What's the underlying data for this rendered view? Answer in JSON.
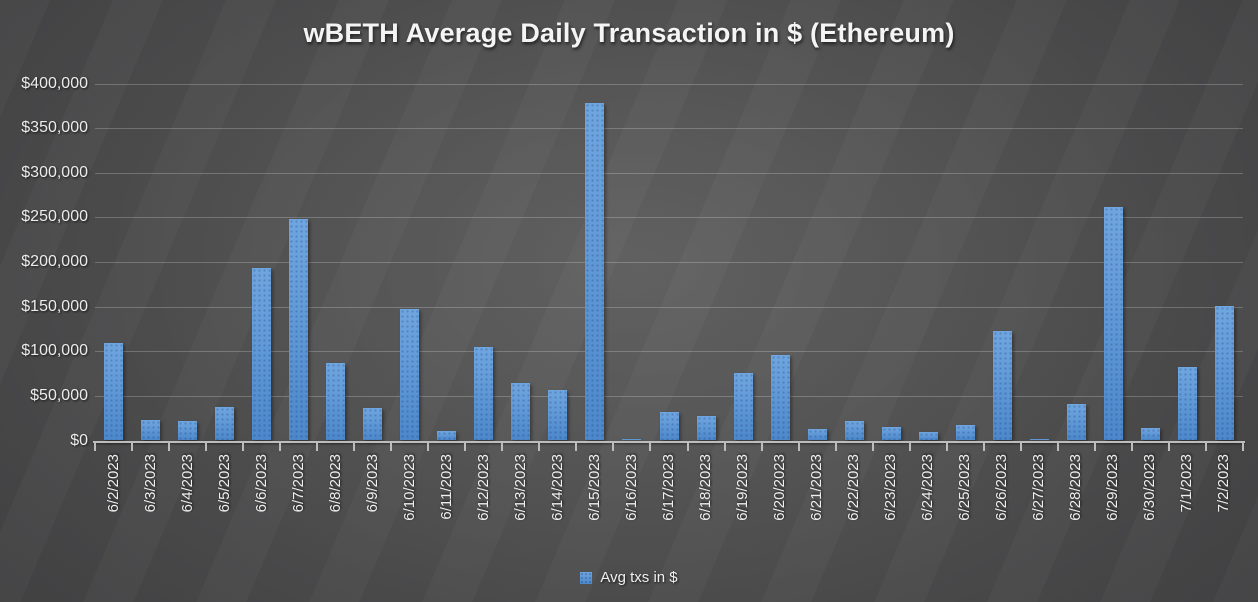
{
  "title": "wBETH Average Daily Transaction in $ (Ethereum)",
  "legend": {
    "label": "Avg txs in $"
  },
  "colors": {
    "bar_top": "#6FA6E0",
    "bar_bottom": "#4C88CB",
    "background_center": "#585858",
    "background_edge": "#2a2a2c",
    "gridline": "rgba(255,255,255,0.22)",
    "axis": "#bdbdbd",
    "text": "#efefef"
  },
  "chart_data": {
    "type": "bar",
    "title": "wBETH Average Daily Transaction in $ (Ethereum)",
    "xlabel": "",
    "ylabel": "",
    "ylim": [
      0,
      400000
    ],
    "y_tick_interval": 50000,
    "y_ticks": [
      {
        "value": 0,
        "label": "$0"
      },
      {
        "value": 50000,
        "label": "$50,000"
      },
      {
        "value": 100000,
        "label": "$100,000"
      },
      {
        "value": 150000,
        "label": "$150,000"
      },
      {
        "value": 200000,
        "label": "$200,000"
      },
      {
        "value": 250000,
        "label": "$250,000"
      },
      {
        "value": 300000,
        "label": "$300,000"
      },
      {
        "value": 350000,
        "label": "$350,000"
      },
      {
        "value": 400000,
        "label": "$400,000"
      }
    ],
    "grid": true,
    "legend_position": "bottom",
    "categories": [
      "6/2/2023",
      "6/3/2023",
      "6/4/2023",
      "6/5/2023",
      "6/6/2023",
      "6/7/2023",
      "6/8/2023",
      "6/9/2023",
      "6/10/2023",
      "6/11/2023",
      "6/12/2023",
      "6/13/2023",
      "6/14/2023",
      "6/15/2023",
      "6/16/2023",
      "6/17/2023",
      "6/18/2023",
      "6/19/2023",
      "6/20/2023",
      "6/21/2023",
      "6/22/2023",
      "6/23/2023",
      "6/24/2023",
      "6/25/2023",
      "6/26/2023",
      "6/27/2023",
      "6/28/2023",
      "6/29/2023",
      "6/30/2023",
      "7/1/2023",
      "7/2/2023"
    ],
    "series": [
      {
        "name": "Avg txs in $",
        "values": [
          109000,
          23000,
          22000,
          37000,
          193000,
          248000,
          87000,
          36000,
          147000,
          11000,
          105000,
          64000,
          57000,
          378000,
          1200,
          32000,
          28000,
          76000,
          96000,
          13000,
          22000,
          15000,
          9000,
          17000,
          123000,
          2000,
          41000,
          262000,
          14500,
          82000,
          151000
        ]
      }
    ]
  }
}
